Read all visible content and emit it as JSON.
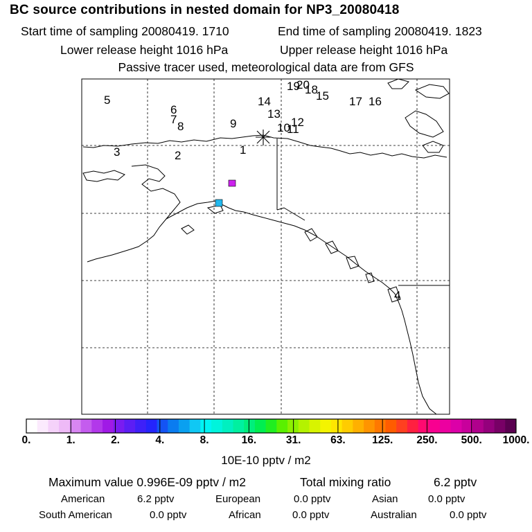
{
  "header": {
    "title": "BC  source contributions in nested domain for NP3_20080418",
    "start_label": "Start time of sampling 20080419.  1710",
    "end_label": "End time of sampling 20080419.  1823",
    "lower_label": "Lower release height 1016 hPa",
    "upper_label": "Upper release height 1016 hPa",
    "tracer_label": "Passive tracer used, meteorological data are from GFS"
  },
  "map": {
    "labels": [
      "1",
      "2",
      "3",
      "4",
      "5",
      "6",
      "7",
      "8",
      "9",
      "10",
      "11",
      "12",
      "13",
      "14",
      "15",
      "16",
      "17",
      "18",
      "19",
      "20"
    ],
    "release_marker": "asterisk",
    "cells": [
      {
        "color": "#cc22ee",
        "level": "1.-2."
      },
      {
        "color": "#22b8ee",
        "level": "4.-8."
      }
    ]
  },
  "colorbar": {
    "ticks": [
      "0.",
      "1.",
      "2.",
      "4.",
      "8.",
      "16.",
      "31.",
      "63.",
      "125.",
      "250.",
      "500.",
      "1000."
    ],
    "units": "10E-10 pptv / m2",
    "colors": [
      "#ffffff",
      "#fbeafd",
      "#f5d2fa",
      "#eebaf7",
      "#d886f2",
      "#c45cee",
      "#b238ea",
      "#a01ae6",
      "#7a1cf0",
      "#5c1ef4",
      "#3e20f8",
      "#2424fc",
      "#1454f4",
      "#0a7cf0",
      "#0aa0f0",
      "#10c8f4",
      "#00f4f4",
      "#00f4dc",
      "#00f0c0",
      "#00f0a0",
      "#00ee7c",
      "#00ee50",
      "#20ee20",
      "#5af000",
      "#8cf000",
      "#b4f200",
      "#d8f400",
      "#f4f400",
      "#ffe600",
      "#ffcc00",
      "#ffb000",
      "#ff9400",
      "#ff7800",
      "#ff5c00",
      "#ff4020",
      "#ff2040",
      "#ff0a70",
      "#f80090",
      "#ec00a0",
      "#dc00a8",
      "#c8009c",
      "#b0008c",
      "#94007c",
      "#780066",
      "#5a0050"
    ]
  },
  "stats": {
    "max_label": "Maximum value  0.996E-09 pptv / m2",
    "total_label": "Total mixing ratio",
    "total_value": "6.2 pptv",
    "regions": [
      {
        "name": "American",
        "value": "6.2 pptv"
      },
      {
        "name": "European",
        "value": "0.0 pptv"
      },
      {
        "name": "Asian",
        "value": "0.0 pptv"
      },
      {
        "name": "South American",
        "value": "0.0 pptv"
      },
      {
        "name": "African",
        "value": "0.0 pptv"
      },
      {
        "name": "Australian",
        "value": "0.0 pptv"
      }
    ]
  }
}
